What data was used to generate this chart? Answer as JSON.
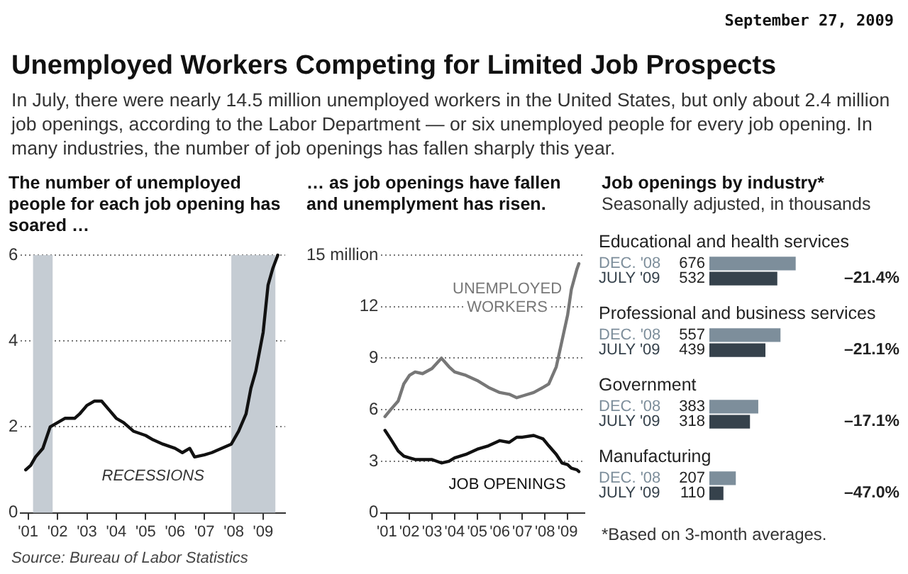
{
  "chart_data": [
    {
      "type": "other",
      "title": "Unemployed Workers Competing for Limited Job Prospects",
      "subtitle": "In July, there were nearly 14.5 million unemployed workers in the United States, but only about 2.4 million job openings, according to the Labor Department — or six unemployed people for every job opening. In many industries, the number of job openings has fallen sharply this year.",
      "annotations": [
        "September 27, 2009",
        "Source: Bureau of Labor Statistics"
      ]
    },
    {
      "type": "line",
      "title": "The number of unemployed people for each job opening has soared …",
      "x": [
        "2000-12",
        "2001-02",
        "2001-04",
        "2001-07",
        "2001-10",
        "2002-01",
        "2002-04",
        "2002-08",
        "2002-10",
        "2003-01",
        "2003-04",
        "2003-07",
        "2003-10",
        "2004-01",
        "2004-04",
        "2004-08",
        "2005-01",
        "2005-04",
        "2005-08",
        "2006-01",
        "2006-04",
        "2006-07",
        "2006-09",
        "2007-01",
        "2007-04",
        "2007-08",
        "2007-12",
        "2008-03",
        "2008-06",
        "2008-08",
        "2008-10",
        "2009-01",
        "2009-03",
        "2009-05",
        "2009-07"
      ],
      "series": [
        {
          "color": "#111111",
          "values": [
            1.0,
            1.1,
            1.3,
            1.5,
            2.0,
            2.1,
            2.2,
            2.2,
            2.3,
            2.5,
            2.6,
            2.6,
            2.4,
            2.2,
            2.1,
            1.9,
            1.8,
            1.7,
            1.6,
            1.5,
            1.4,
            1.5,
            1.3,
            1.35,
            1.4,
            1.5,
            1.6,
            1.9,
            2.3,
            2.9,
            3.3,
            4.2,
            5.3,
            5.7,
            6.0
          ]
        }
      ],
      "xlim": [
        "2000-10",
        "2009-10"
      ],
      "xticks": [
        {
          "value": "2001",
          "label": "'01"
        },
        {
          "value": "2002",
          "label": "'02"
        },
        {
          "value": "2003",
          "label": "'03"
        },
        {
          "value": "2004",
          "label": "'04"
        },
        {
          "value": "2005",
          "label": "'05"
        },
        {
          "value": "2006",
          "label": "'06"
        },
        {
          "value": "2007",
          "label": "'07"
        },
        {
          "value": "2008",
          "label": "'08"
        },
        {
          "value": "2009",
          "label": "'09"
        }
      ],
      "ylim": [
        0,
        6
      ],
      "yticks": [
        0,
        2,
        4,
        6
      ],
      "grid": "y",
      "bands": [
        {
          "axis": "x",
          "from": "2001-03",
          "to": "2001-11",
          "color": "#c5ccd3"
        },
        {
          "axis": "x",
          "from": "2007-12",
          "to": "2009-06",
          "color": "#c5ccd3"
        }
      ],
      "annotations": [
        "RECESSIONS"
      ]
    },
    {
      "type": "line",
      "title": "… as job openings have fallen and unemplyment has risen.",
      "x": [
        "2000-12",
        "2001-03",
        "2001-07",
        "2001-10",
        "2002-01",
        "2002-04",
        "2002-08",
        "2003-01",
        "2003-06",
        "2003-10",
        "2004-01",
        "2004-07",
        "2005-01",
        "2005-07",
        "2006-01",
        "2006-06",
        "2006-10",
        "2007-01",
        "2007-07",
        "2007-12",
        "2008-03",
        "2008-07",
        "2008-10",
        "2009-01",
        "2009-03",
        "2009-06",
        "2009-07"
      ],
      "series": [
        {
          "name": "UNEMPLOYED WORKERS",
          "color": "#777777",
          "values": [
            5.6,
            6.0,
            6.5,
            7.5,
            8.0,
            8.2,
            8.1,
            8.4,
            9.0,
            8.5,
            8.2,
            8.0,
            7.7,
            7.3,
            7.0,
            6.9,
            6.7,
            6.8,
            7.0,
            7.3,
            7.5,
            8.5,
            10.0,
            11.5,
            13.0,
            14.2,
            14.5
          ]
        },
        {
          "name": "JOB OPENINGS",
          "color": "#111111",
          "values": [
            4.8,
            4.3,
            3.6,
            3.3,
            3.2,
            3.1,
            3.1,
            3.1,
            2.9,
            3.0,
            3.2,
            3.4,
            3.7,
            3.9,
            4.2,
            4.1,
            4.4,
            4.4,
            4.5,
            4.3,
            3.9,
            3.4,
            2.9,
            2.8,
            2.6,
            2.5,
            2.4
          ]
        }
      ],
      "xlim": [
        "2000-10",
        "2009-10"
      ],
      "xticks": [
        {
          "value": "2001",
          "label": "'01"
        },
        {
          "value": "2002",
          "label": "'02"
        },
        {
          "value": "2003",
          "label": "'03"
        },
        {
          "value": "2004",
          "label": "'04"
        },
        {
          "value": "2005",
          "label": "'05"
        },
        {
          "value": "2006",
          "label": "'06"
        },
        {
          "value": "2007",
          "label": "'07"
        },
        {
          "value": "2008",
          "label": "'08"
        },
        {
          "value": "2009",
          "label": "'09"
        }
      ],
      "ylim": [
        0,
        15
      ],
      "yticks": [
        0,
        3,
        6,
        9,
        12,
        {
          "value": 15,
          "label": "15 million"
        }
      ],
      "grid": "y"
    },
    {
      "type": "bar",
      "orientation": "horizontal",
      "title": "Job openings by industry*",
      "subtitle": "Seasonally adjusted, in thousands",
      "categories": [
        "Educational and health services",
        "Professional and business services",
        "Government",
        "Manufacturing"
      ],
      "series": [
        {
          "name": "DEC. '08",
          "color": "#7d8e9b",
          "values": [
            676,
            557,
            383,
            207
          ]
        },
        {
          "name": "JULY '09",
          "color": "#36424c",
          "values": [
            532,
            439,
            318,
            110
          ]
        }
      ],
      "data_labels": true,
      "annotations": [
        "–21.4%",
        "–21.1%",
        "–17.1%",
        "–47.0%",
        "*Based on 3-month averages."
      ]
    }
  ]
}
